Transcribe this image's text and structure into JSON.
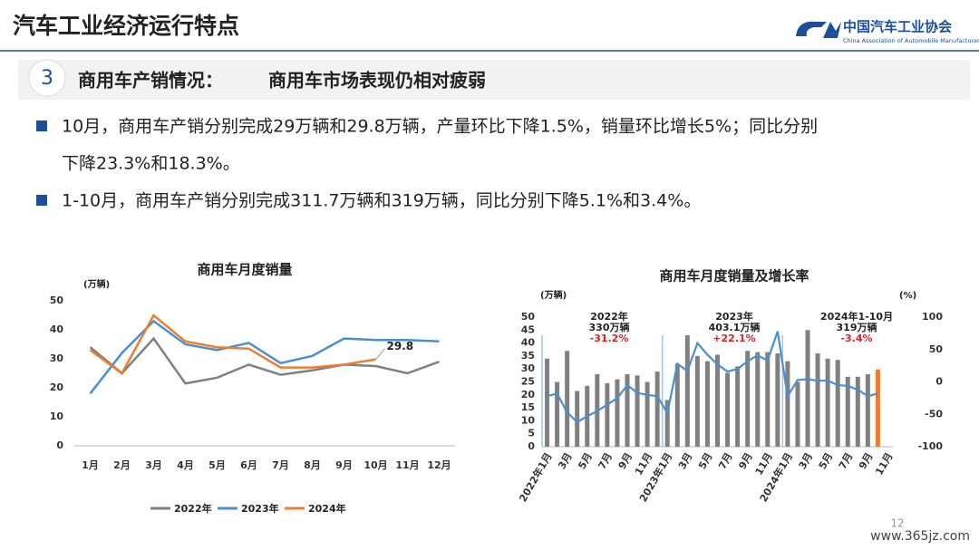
{
  "header": {
    "title": "汽车工业经济运行特点",
    "logo_cn": "中国汽车工业协会",
    "logo_en": "China Association of Automobile Manufacturers"
  },
  "section": {
    "number": "3",
    "title": "商用车产销情况：",
    "subtitle": "商用车市场表现仍相对疲弱"
  },
  "bullets": [
    [
      "10月，商用车产销分别完成29万辆和29.8万辆，产量环比下降1.5%，销量环比增长5%；同比分别",
      "下降23.3%和18.3%。"
    ],
    [
      "1-10月，商用车产销分别完成311.7万辆和319万辆，同比分别下降5.1%和3.4%。"
    ]
  ],
  "chart_data": [
    {
      "type": "line",
      "title": "商用车月度销量",
      "y_unit": "(万辆)",
      "categories": [
        "1月",
        "2月",
        "3月",
        "4月",
        "5月",
        "6月",
        "7月",
        "8月",
        "9月",
        "10月",
        "11月",
        "12月"
      ],
      "ylim": [
        0,
        50
      ],
      "yticks": [
        0,
        10,
        20,
        30,
        40,
        50
      ],
      "legend": "bottom",
      "series": [
        {
          "name": "2022年",
          "color": "#808080",
          "values": [
            34,
            25,
            37,
            21.5,
            23.5,
            28,
            24.5,
            26,
            28,
            27.5,
            25,
            29
          ]
        },
        {
          "name": "2023年",
          "color": "#4a8fd0",
          "values": [
            18,
            32,
            43,
            35,
            33,
            35.5,
            28.5,
            31,
            37,
            36.5,
            36.5,
            36
          ]
        },
        {
          "name": "2024年",
          "color": "#ed7d31",
          "values": [
            33,
            25,
            45,
            36,
            34,
            33.5,
            27,
            27,
            28,
            29.8,
            null,
            null
          ]
        }
      ]
    },
    {
      "type": "bar_line",
      "title": "商用车月度销量及增长率",
      "y_unit": "(万辆)",
      "y2_unit": "(%)",
      "categories": [
        "2022年1月",
        null,
        "3月",
        null,
        "5月",
        null,
        "7月",
        null,
        "9月",
        null,
        "11月",
        null,
        "2023年1月",
        null,
        "3月",
        null,
        "5月",
        null,
        "7月",
        null,
        "9月",
        null,
        "11月",
        null,
        "2024年1月",
        null,
        "3月",
        null,
        "5月",
        null,
        "7月",
        null,
        "9月",
        null,
        "11月"
      ],
      "ylim": [
        0,
        50
      ],
      "yticks": [
        0,
        5,
        10,
        15,
        20,
        25,
        30,
        35,
        40,
        45,
        50
      ],
      "y2lim": [
        -100,
        100
      ],
      "y2ticks": [
        -100,
        -50,
        0,
        50,
        100
      ],
      "highlight": {
        "index": 33,
        "color": "#ed7d31"
      },
      "series": [
        {
          "name": "销量",
          "color": "#808080",
          "values": [
            34,
            25,
            37,
            21.5,
            23.5,
            28,
            24.5,
            26,
            28,
            27.5,
            25,
            29,
            18,
            32,
            43,
            35,
            33,
            35.5,
            28.5,
            31,
            37,
            36.5,
            36.5,
            36,
            33,
            25,
            45,
            36,
            34,
            33.5,
            27,
            27,
            28,
            29.8,
            null
          ]
        },
        {
          "name": "增长率",
          "color": "#4a8fd0",
          "axis": "y2",
          "values": [
            -22,
            -18,
            -47,
            -62,
            -53,
            -45,
            -35,
            -25,
            -5,
            -17,
            -20,
            -22,
            -48,
            28,
            17,
            60,
            42,
            27,
            16,
            20,
            32,
            41,
            33,
            78,
            -22,
            3,
            4,
            2,
            2,
            -5,
            -6,
            -12,
            -22,
            -18,
            null
          ]
        }
      ],
      "annotations": [
        {
          "lines": [
            "2022年",
            "330万辆"
          ],
          "change": "-31.2%"
        },
        {
          "lines": [
            "2023年",
            "403.1万辆"
          ],
          "change": "+22.1%"
        },
        {
          "lines": [
            "2024年1-10月",
            "319万辆"
          ],
          "change": "-3.4%"
        }
      ]
    }
  ],
  "page_number": "12",
  "watermark": "www.365jz.com"
}
